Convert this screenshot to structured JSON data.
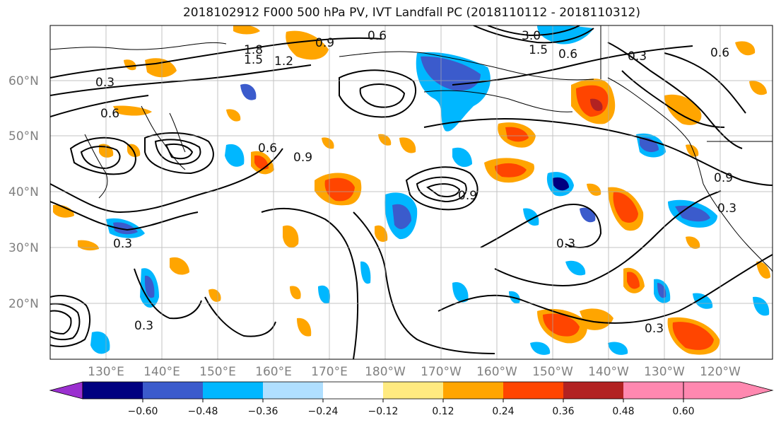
{
  "title": "2018102912 F000 500 hPa PV, IVT Landfall PC (2018110112 - 2018110312)",
  "latitude_labels": [
    "60°N",
    "50°N",
    "40°N",
    "30°N",
    "20°N"
  ],
  "longitude_labels": [
    "130°E",
    "140°E",
    "150°E",
    "160°E",
    "170°E",
    "180°W",
    "170°W",
    "160°W",
    "150°W",
    "140°W",
    "130°W",
    "120°W"
  ],
  "colorbar": {
    "colors": [
      "#9b30d0",
      "#000080",
      "#3b5bcc",
      "#00b7ff",
      "#b0dfff",
      "#ffffff",
      "#ffea80",
      "#ffa500",
      "#ff4500",
      "#b22222",
      "#ff88b0"
    ],
    "tick_labels": [
      "−0.60",
      "−0.48",
      "−0.36",
      "−0.24",
      "−0.12",
      "0.12",
      "0.24",
      "0.36",
      "0.48",
      "0.60"
    ]
  },
  "contour_labels": [
    "0.6",
    "1.8",
    "1.5",
    "1.2",
    "0.9",
    "0.3",
    "0.6",
    "0.9",
    "0.6",
    "0.3",
    "0.6",
    "0.9",
    "0.3",
    "0.3",
    "0.3",
    "0.9",
    "0.3",
    "1.5",
    "3.0",
    "0.6",
    "0.3"
  ]
}
